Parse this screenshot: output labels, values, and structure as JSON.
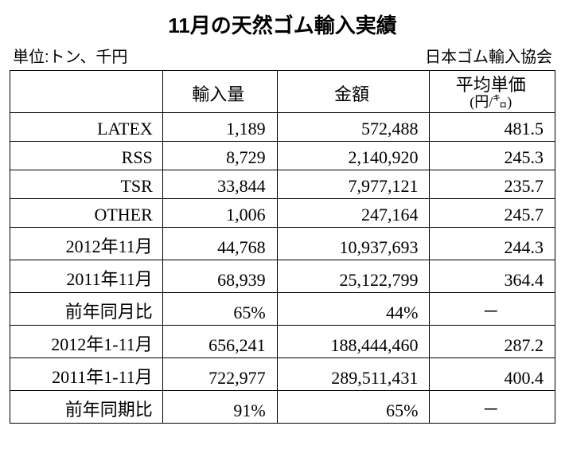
{
  "title": "11月の天然ゴム輸入実績",
  "unit_label": "単位:トン、千円",
  "source_label": "日本ゴム輸入協会",
  "table": {
    "type": "table",
    "background_color": "#ffffff",
    "border_color": "#000000",
    "font_family": "serif",
    "header_fontsize": 22,
    "cell_fontsize": 22,
    "columns": [
      {
        "key": "label",
        "header": "",
        "align": "right"
      },
      {
        "key": "qty",
        "header": "輸入量",
        "align": "right"
      },
      {
        "key": "amount",
        "header": "金額",
        "align": "right"
      },
      {
        "key": "unit_price",
        "header_main": "平均単価",
        "header_sub": "(円/㌔)",
        "align": "right"
      }
    ],
    "rows": [
      {
        "label": "LATEX",
        "qty": "1,189",
        "amount": "572,488",
        "unit_price": "481.5"
      },
      {
        "label": "RSS",
        "qty": "8,729",
        "amount": "2,140,920",
        "unit_price": "245.3"
      },
      {
        "label": "TSR",
        "qty": "33,844",
        "amount": "7,977,121",
        "unit_price": "235.7"
      },
      {
        "label": "OTHER",
        "qty": "1,006",
        "amount": "247,164",
        "unit_price": "245.7"
      },
      {
        "label": "2012年11月",
        "qty": "44,768",
        "amount": "10,937,693",
        "unit_price": "244.3"
      },
      {
        "label": "2011年11月",
        "qty": "68,939",
        "amount": "25,122,799",
        "unit_price": "364.4"
      },
      {
        "label": "前年同月比",
        "qty": "65%",
        "amount": "44%",
        "unit_price": "－",
        "dash": true
      },
      {
        "label": "2012年1-11月",
        "qty": "656,241",
        "amount": "188,444,460",
        "unit_price": "287.2"
      },
      {
        "label": "2011年1-11月",
        "qty": "722,977",
        "amount": "289,511,431",
        "unit_price": "400.4"
      },
      {
        "label": "前年同期比",
        "qty": "91%",
        "amount": "65%",
        "unit_price": "－",
        "dash": true
      }
    ]
  }
}
